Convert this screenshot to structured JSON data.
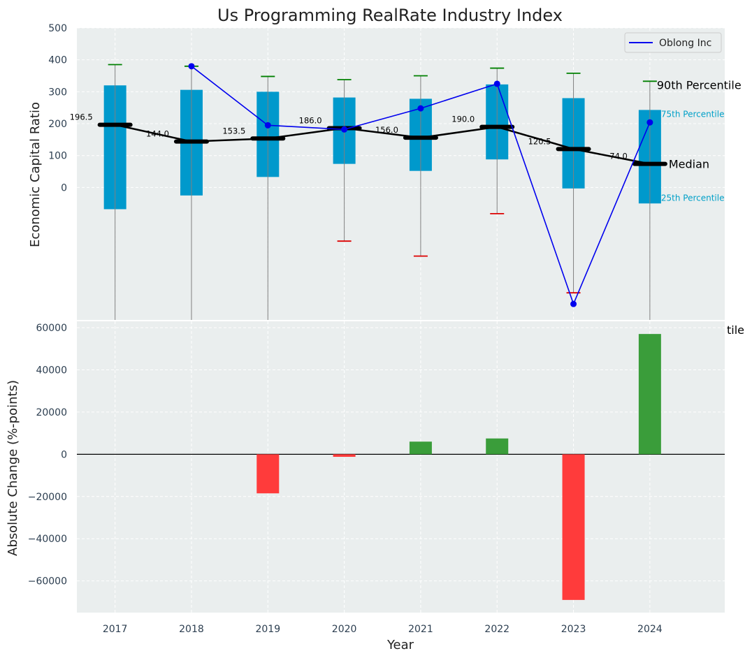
{
  "title": "Us Programming RealRate Industry Index",
  "chart_data": [
    {
      "type": "box",
      "panel": "top",
      "ylabel": "Economic Capital Ratio",
      "ylim": [
        -415,
        500
      ],
      "yticks": [
        0,
        100,
        200,
        300,
        400,
        500
      ],
      "categories": [
        "2017",
        "2018",
        "2019",
        "2020",
        "2021",
        "2022",
        "2023",
        "2024"
      ],
      "boxes": [
        {
          "year": "2017",
          "p10": -420,
          "p25": -68,
          "median": 196.5,
          "p75": 320,
          "p90": 385
        },
        {
          "year": "2018",
          "p10": -420,
          "p25": -25,
          "median": 144.0,
          "p75": 306,
          "p90": 380
        },
        {
          "year": "2019",
          "p10": -420,
          "p25": 33,
          "median": 153.5,
          "p75": 300,
          "p90": 348
        },
        {
          "year": "2020",
          "p10": -168,
          "p25": 74,
          "median": 186.0,
          "p75": 282,
          "p90": 338
        },
        {
          "year": "2021",
          "p10": -215,
          "p25": 52,
          "median": 156.0,
          "p75": 278,
          "p90": 350
        },
        {
          "year": "2022",
          "p10": -82,
          "p25": 88,
          "median": 190.0,
          "p75": 323,
          "p90": 374
        },
        {
          "year": "2023",
          "p10": -330,
          "p25": -3,
          "median": 120.5,
          "p75": 280,
          "p90": 358
        },
        {
          "year": "2024",
          "p10": -420,
          "p25": -50,
          "median": 74.0,
          "p75": 243,
          "p90": 333
        }
      ],
      "median_labels": [
        "196.5",
        "144.0",
        "153.5",
        "186.0",
        "156.0",
        "190.0",
        "120.5",
        "74.0"
      ],
      "series": [
        {
          "name": "Oblong Inc",
          "values": [
            null,
            380,
            195,
            182,
            248,
            325,
            -365,
            204
          ]
        }
      ],
      "legend_position": "top-right",
      "annotations": {
        "p90": "90th Percentile",
        "p75": "75th Percentile",
        "median": "Median",
        "p25": "25th Percentile",
        "clipped": "tile"
      },
      "grid": true
    },
    {
      "type": "bar",
      "panel": "bottom",
      "xlabel": "Year",
      "ylabel": "Absolute Change (%-points)",
      "ylim": [
        -75000,
        63000
      ],
      "yticks": [
        "60000",
        "40000",
        "20000",
        "0",
        "−20000",
        "−40000",
        "−60000"
      ],
      "categories": [
        "2017",
        "2018",
        "2019",
        "2020",
        "2021",
        "2022",
        "2023",
        "2024"
      ],
      "values": [
        0,
        0,
        -18500,
        -1200,
        6000,
        7500,
        -69000,
        57000
      ],
      "grid": true
    }
  ],
  "colors": {
    "background": "#eaeeee",
    "box": "#0099cc",
    "median": "#000000",
    "series": "#0000ee",
    "whisker": "#808080",
    "cap_high": "#008000",
    "cap_low": "#dd0000",
    "bar_positive": "#3a9d3a",
    "bar_negative": "#ff3b3b",
    "annotation_light": "#00a0c8"
  }
}
